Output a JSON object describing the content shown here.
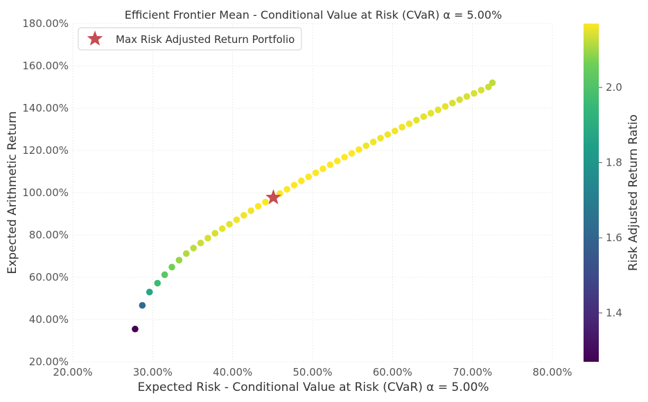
{
  "chart_data": {
    "type": "scatter",
    "title": "Efficient Frontier Mean - Conditional Value at Risk (CVaR) α = 5.00%",
    "xlabel": "Expected Risk - Conditional Value at Risk (CVaR) α = 5.00%",
    "ylabel": "Expected Arithmetic Return",
    "colorbar_label": "Risk Adjusted Return Ratio",
    "xlim": [
      0.2,
      0.8
    ],
    "ylim": [
      0.2,
      1.8
    ],
    "x_ticks": [
      "20.00%",
      "30.00%",
      "40.00%",
      "50.00%",
      "60.00%",
      "70.00%",
      "80.00%"
    ],
    "y_ticks": [
      "20.00%",
      "40.00%",
      "60.00%",
      "80.00%",
      "100.00%",
      "120.00%",
      "140.00%",
      "160.00%",
      "180.00%"
    ],
    "colorbar_range": [
      1.27,
      2.17
    ],
    "colorbar_ticks": [
      "1.4",
      "1.6",
      "1.8",
      "2.0"
    ],
    "colormap": "viridis",
    "grid": true,
    "legend": {
      "placement": "top-left",
      "entries": [
        "Max Risk Adjusted Return Portfolio"
      ],
      "marker_color": "#c44e52"
    },
    "points": {
      "x": [
        0.278,
        0.287,
        0.296,
        0.306,
        0.315,
        0.324,
        0.333,
        0.342,
        0.351,
        0.36,
        0.369,
        0.378,
        0.387,
        0.396,
        0.405,
        0.414,
        0.423,
        0.432,
        0.441,
        0.45,
        0.459,
        0.468,
        0.477,
        0.486,
        0.495,
        0.504,
        0.513,
        0.522,
        0.531,
        0.54,
        0.549,
        0.558,
        0.567,
        0.576,
        0.585,
        0.594,
        0.603,
        0.612,
        0.621,
        0.63,
        0.639,
        0.648,
        0.657,
        0.666,
        0.675,
        0.684,
        0.693,
        0.702,
        0.711,
        0.72,
        0.725
      ],
      "y": [
        0.355,
        0.467,
        0.53,
        0.572,
        0.612,
        0.648,
        0.681,
        0.712,
        0.738,
        0.762,
        0.785,
        0.808,
        0.83,
        0.851,
        0.872,
        0.893,
        0.915,
        0.936,
        0.956,
        0.976,
        0.996,
        1.016,
        1.036,
        1.056,
        1.075,
        1.094,
        1.113,
        1.132,
        1.15,
        1.168,
        1.186,
        1.204,
        1.222,
        1.24,
        1.258,
        1.275,
        1.292,
        1.31,
        1.326,
        1.343,
        1.36,
        1.376,
        1.392,
        1.408,
        1.424,
        1.44,
        1.455,
        1.47,
        1.485,
        1.5,
        1.52
      ],
      "ratio": [
        1.27,
        1.62,
        1.87,
        1.96,
        2.02,
        2.06,
        2.09,
        2.11,
        2.12,
        2.13,
        2.14,
        2.14,
        2.15,
        2.15,
        2.16,
        2.16,
        2.16,
        2.17,
        2.17,
        2.17,
        2.17,
        2.17,
        2.17,
        2.17,
        2.17,
        2.17,
        2.17,
        2.17,
        2.17,
        2.17,
        2.17,
        2.17,
        2.16,
        2.16,
        2.16,
        2.16,
        2.16,
        2.16,
        2.16,
        2.15,
        2.15,
        2.15,
        2.15,
        2.15,
        2.14,
        2.14,
        2.14,
        2.14,
        2.14,
        2.13,
        2.12
      ]
    },
    "highlight": {
      "x": 0.451,
      "y": 0.977
    }
  }
}
